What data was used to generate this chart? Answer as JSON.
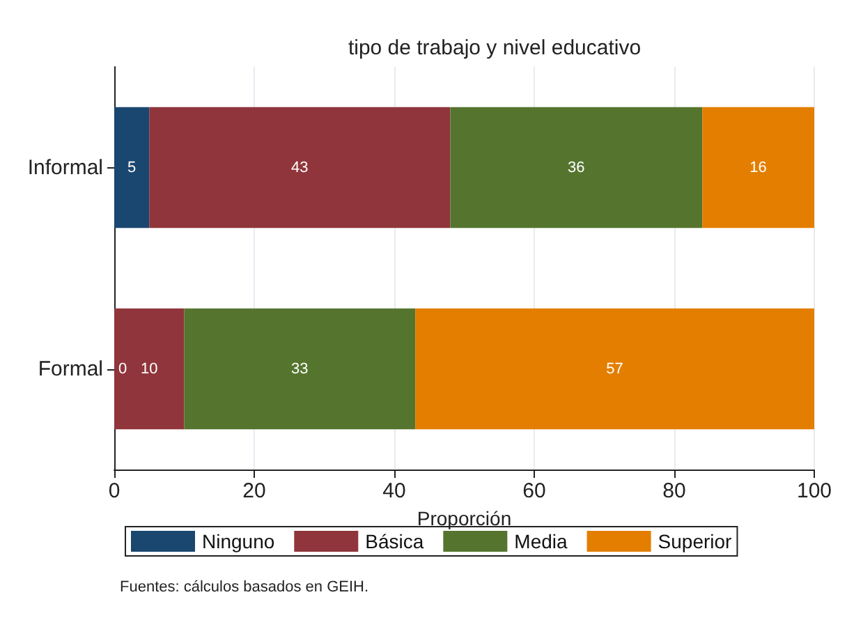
{
  "chart_data": {
    "type": "bar",
    "orientation": "horizontal",
    "stacked": true,
    "title": "tipo de trabajo y nivel educativo",
    "xlabel": "Proporción",
    "categories": [
      "Informal",
      "Formal"
    ],
    "series": [
      {
        "name": "Ninguno",
        "color": "#1a476f",
        "values": [
          5,
          0
        ],
        "value_labels": [
          "5",
          "0"
        ]
      },
      {
        "name": "Básica",
        "color": "#90353b",
        "values": [
          43,
          10
        ],
        "value_labels": [
          "43",
          "10"
        ]
      },
      {
        "name": "Media",
        "color": "#55752f",
        "values": [
          36,
          33
        ],
        "value_labels": [
          "36",
          "33"
        ]
      },
      {
        "name": "Superior",
        "color": "#e37e00",
        "values": [
          16,
          57
        ],
        "value_labels": [
          "16",
          "57"
        ]
      }
    ],
    "xlim": [
      0,
      100
    ],
    "xticks": [
      0,
      20,
      40,
      60,
      80,
      100
    ],
    "grid": "x",
    "legend": "bottom",
    "annotations": [
      "Fuentes: cálculos basados en GEIH."
    ]
  }
}
